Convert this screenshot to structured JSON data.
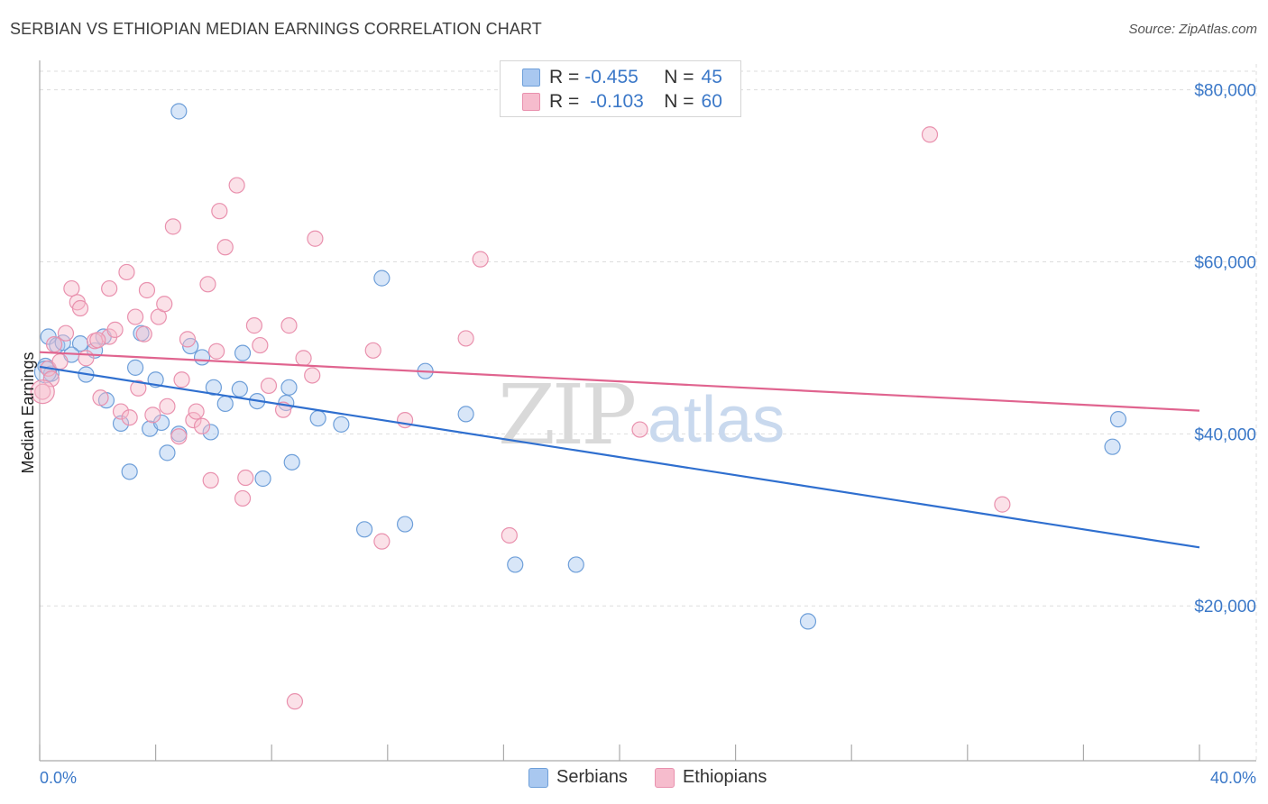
{
  "title": "SERBIAN VS ETHIOPIAN MEDIAN EARNINGS CORRELATION CHART",
  "source": "Source: ZipAtlas.com",
  "watermark": {
    "zip": "ZIP",
    "atlas": "atlas"
  },
  "colors": {
    "serbian_fill": "#a9c8f0",
    "serbian_stroke": "#6e9fd9",
    "serbian_line": "#2f6fcf",
    "ethiopian_fill": "#f6bccd",
    "ethiopian_stroke": "#e991ae",
    "ethiopian_line": "#e0648f",
    "axis_text": "#3b78c8",
    "grid": "#dddddd"
  },
  "legend": {
    "rows": [
      {
        "r_label": "R =",
        "r_value": "-0.455",
        "n_label": "N =",
        "n_value": "45"
      },
      {
        "r_label": "R =",
        "r_value": "-0.103",
        "n_label": "N =",
        "n_value": "60"
      }
    ]
  },
  "bottom_legend": {
    "items": [
      {
        "label": "Serbians"
      },
      {
        "label": "Ethiopians"
      }
    ]
  },
  "chart_data": {
    "type": "scatter",
    "title": "SERBIAN VS ETHIOPIAN MEDIAN EARNINGS CORRELATION CHART",
    "xlabel": "",
    "ylabel": "Median Earnings",
    "xlim": [
      0,
      40
    ],
    "ylim": [
      2000,
      83000
    ],
    "x_tick_labels": [
      "0.0%",
      "40.0%"
    ],
    "y_ticks": [
      20000,
      40000,
      60000,
      80000
    ],
    "y_tick_labels": [
      "$20,000",
      "$40,000",
      "$60,000",
      "$80,000"
    ],
    "grid": true,
    "legend_position": "top-center",
    "series": [
      {
        "name": "Serbians",
        "r": -0.455,
        "n": 45,
        "trend": {
          "x": [
            0,
            40
          ],
          "y": [
            47800,
            26800
          ]
        },
        "points": [
          {
            "x": 0.3,
            "y": 51300
          },
          {
            "x": 0.6,
            "y": 50300
          },
          {
            "x": 1.4,
            "y": 50500
          },
          {
            "x": 1.9,
            "y": 49700
          },
          {
            "x": 1.1,
            "y": 49200
          },
          {
            "x": 3.5,
            "y": 51700
          },
          {
            "x": 2.2,
            "y": 51300
          },
          {
            "x": 0.2,
            "y": 47900
          },
          {
            "x": 1.6,
            "y": 46900
          },
          {
            "x": 3.3,
            "y": 47700
          },
          {
            "x": 4.0,
            "y": 46300
          },
          {
            "x": 5.2,
            "y": 50200
          },
          {
            "x": 5.6,
            "y": 48900
          },
          {
            "x": 7.0,
            "y": 49400
          },
          {
            "x": 2.3,
            "y": 43900
          },
          {
            "x": 2.8,
            "y": 41200
          },
          {
            "x": 3.8,
            "y": 40600
          },
          {
            "x": 4.2,
            "y": 41300
          },
          {
            "x": 4.8,
            "y": 40000
          },
          {
            "x": 5.9,
            "y": 40200
          },
          {
            "x": 6.0,
            "y": 45400
          },
          {
            "x": 6.4,
            "y": 43500
          },
          {
            "x": 6.9,
            "y": 45200
          },
          {
            "x": 7.5,
            "y": 43800
          },
          {
            "x": 8.5,
            "y": 43600
          },
          {
            "x": 8.6,
            "y": 45400
          },
          {
            "x": 9.6,
            "y": 41800
          },
          {
            "x": 10.4,
            "y": 41100
          },
          {
            "x": 13.3,
            "y": 47300
          },
          {
            "x": 14.7,
            "y": 42300
          },
          {
            "x": 4.4,
            "y": 37800
          },
          {
            "x": 3.1,
            "y": 35600
          },
          {
            "x": 7.7,
            "y": 34800
          },
          {
            "x": 8.7,
            "y": 36700
          },
          {
            "x": 11.8,
            "y": 58100
          },
          {
            "x": 4.8,
            "y": 77500
          },
          {
            "x": 11.2,
            "y": 28900
          },
          {
            "x": 12.6,
            "y": 29500
          },
          {
            "x": 16.4,
            "y": 24800
          },
          {
            "x": 18.5,
            "y": 24800
          },
          {
            "x": 26.5,
            "y": 18200
          },
          {
            "x": 37.2,
            "y": 41700
          },
          {
            "x": 37.0,
            "y": 38500
          },
          {
            "x": 0.4,
            "y": 47000
          },
          {
            "x": 0.8,
            "y": 50600
          }
        ]
      },
      {
        "name": "Ethiopians",
        "r": -0.103,
        "n": 60,
        "trend": {
          "x": [
            0,
            40
          ],
          "y": [
            49500,
            42700
          ]
        },
        "points": [
          {
            "x": 0.1,
            "y": 44900
          },
          {
            "x": 0.3,
            "y": 47600
          },
          {
            "x": 0.5,
            "y": 50400
          },
          {
            "x": 0.7,
            "y": 48400
          },
          {
            "x": 0.9,
            "y": 51700
          },
          {
            "x": 1.1,
            "y": 56900
          },
          {
            "x": 1.3,
            "y": 55300
          },
          {
            "x": 1.4,
            "y": 54600
          },
          {
            "x": 1.6,
            "y": 48800
          },
          {
            "x": 1.9,
            "y": 50800
          },
          {
            "x": 2.1,
            "y": 44200
          },
          {
            "x": 2.4,
            "y": 51300
          },
          {
            "x": 2.4,
            "y": 56900
          },
          {
            "x": 2.6,
            "y": 52100
          },
          {
            "x": 2.8,
            "y": 42600
          },
          {
            "x": 3.0,
            "y": 58800
          },
          {
            "x": 3.1,
            "y": 41900
          },
          {
            "x": 3.3,
            "y": 53600
          },
          {
            "x": 3.4,
            "y": 45300
          },
          {
            "x": 3.6,
            "y": 51600
          },
          {
            "x": 3.7,
            "y": 56700
          },
          {
            "x": 3.9,
            "y": 42200
          },
          {
            "x": 4.1,
            "y": 53600
          },
          {
            "x": 4.3,
            "y": 55100
          },
          {
            "x": 4.4,
            "y": 43200
          },
          {
            "x": 4.6,
            "y": 64100
          },
          {
            "x": 4.8,
            "y": 39700
          },
          {
            "x": 4.9,
            "y": 46300
          },
          {
            "x": 5.1,
            "y": 51000
          },
          {
            "x": 5.3,
            "y": 41600
          },
          {
            "x": 5.4,
            "y": 42600
          },
          {
            "x": 5.6,
            "y": 40900
          },
          {
            "x": 5.8,
            "y": 57400
          },
          {
            "x": 5.9,
            "y": 34600
          },
          {
            "x": 6.1,
            "y": 49600
          },
          {
            "x": 6.2,
            "y": 65900
          },
          {
            "x": 6.4,
            "y": 61700
          },
          {
            "x": 6.8,
            "y": 68900
          },
          {
            "x": 7.0,
            "y": 32500
          },
          {
            "x": 7.1,
            "y": 34900
          },
          {
            "x": 7.4,
            "y": 52600
          },
          {
            "x": 7.6,
            "y": 50300
          },
          {
            "x": 7.9,
            "y": 45600
          },
          {
            "x": 8.4,
            "y": 42800
          },
          {
            "x": 8.6,
            "y": 52600
          },
          {
            "x": 9.1,
            "y": 48800
          },
          {
            "x": 9.4,
            "y": 46800
          },
          {
            "x": 9.5,
            "y": 62700
          },
          {
            "x": 11.5,
            "y": 49700
          },
          {
            "x": 11.8,
            "y": 27500
          },
          {
            "x": 12.6,
            "y": 41600
          },
          {
            "x": 14.7,
            "y": 51100
          },
          {
            "x": 15.2,
            "y": 60300
          },
          {
            "x": 16.2,
            "y": 28200
          },
          {
            "x": 20.7,
            "y": 40500
          },
          {
            "x": 30.7,
            "y": 74800
          },
          {
            "x": 33.2,
            "y": 31800
          },
          {
            "x": 8.8,
            "y": 8900
          },
          {
            "x": 2.0,
            "y": 50900
          },
          {
            "x": 0.4,
            "y": 46400
          }
        ]
      }
    ]
  }
}
